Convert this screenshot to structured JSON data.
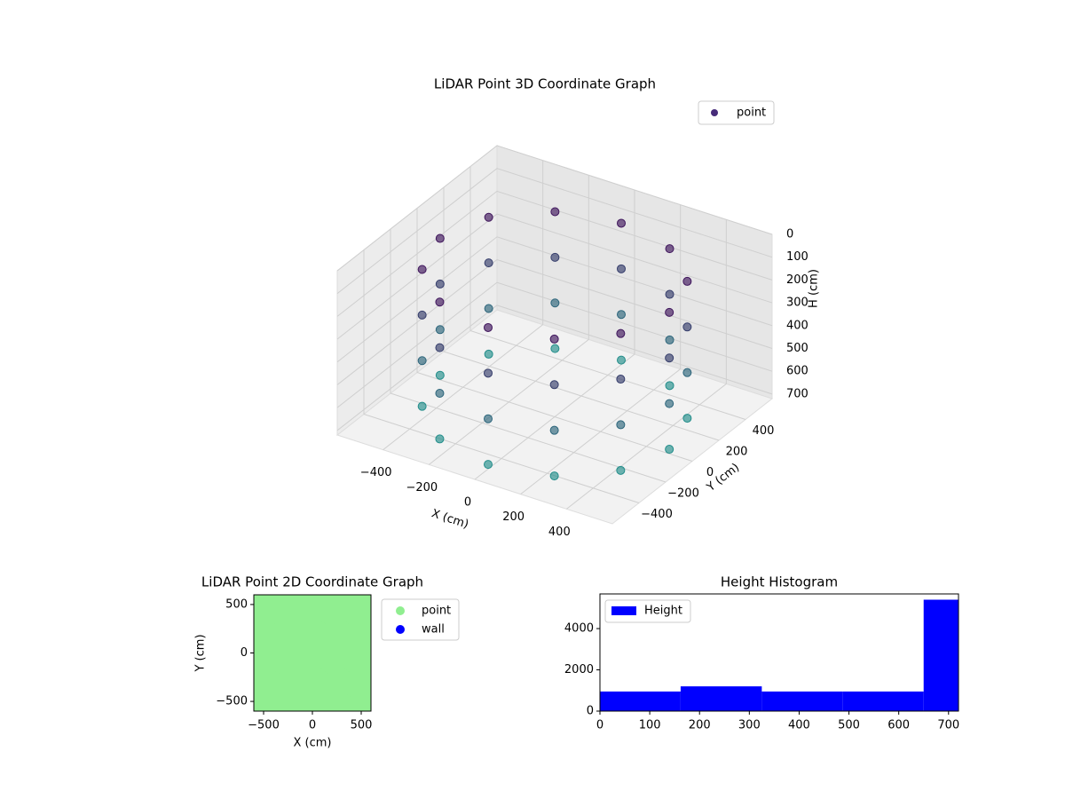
{
  "chart_data": [
    {
      "type": "scatter3d",
      "title": "LiDAR Point 3D Coordinate Graph",
      "xlabel": "X (cm)",
      "ylabel": "Y (cm)",
      "zlabel": "H (cm)",
      "series": [
        {
          "name": "point",
          "color": "#472c7a",
          "x": [
            500,
            433,
            250,
            0,
            -250,
            -433,
            -500,
            -433,
            -250,
            0,
            250,
            433,
            500,
            433,
            250,
            0,
            -250,
            -433,
            -500,
            -433,
            -250,
            0,
            250,
            433,
            500,
            433,
            250,
            0,
            -250,
            -433,
            -500,
            -433,
            -250,
            0,
            250,
            433,
            500,
            433,
            250,
            0,
            -250,
            -433,
            -500,
            -433,
            -250,
            0,
            250,
            433
          ],
          "y": [
            0,
            250,
            433,
            500,
            433,
            250,
            0,
            -250,
            -433,
            -500,
            -433,
            -250,
            0,
            250,
            433,
            500,
            433,
            250,
            0,
            -250,
            -433,
            -500,
            -433,
            -250,
            0,
            250,
            433,
            500,
            433,
            250,
            0,
            -250,
            -433,
            -500,
            -433,
            -250,
            0,
            250,
            433,
            500,
            433,
            250,
            0,
            -250,
            -433,
            -500,
            -433,
            -250
          ],
          "h": [
            100,
            100,
            100,
            100,
            100,
            100,
            100,
            100,
            100,
            100,
            100,
            100,
            300,
            300,
            300,
            300,
            300,
            300,
            300,
            300,
            300,
            300,
            300,
            300,
            500,
            500,
            500,
            500,
            500,
            500,
            500,
            500,
            500,
            500,
            500,
            500,
            700,
            700,
            700,
            700,
            700,
            700,
            700,
            700,
            700,
            700,
            700,
            700
          ]
        }
      ],
      "cmap": [
        "#440154",
        "#21918c"
      ],
      "xlim": [
        -600,
        600
      ],
      "ylim": [
        -600,
        600
      ],
      "zlim": [
        0,
        720
      ],
      "z_inverted": true,
      "xticks": [
        {
          "value": -400,
          "label": "−400"
        },
        {
          "value": -200,
          "label": "−200"
        },
        0,
        200,
        400
      ],
      "yticks": [
        {
          "value": -400,
          "label": "−400"
        },
        {
          "value": -200,
          "label": "−200"
        },
        0,
        200,
        400
      ],
      "zticks": [
        0,
        100,
        200,
        300,
        400,
        500,
        600,
        700
      ],
      "legend": "upper right"
    },
    {
      "type": "scatter",
      "title": "LiDAR Point 2D Coordinate Graph",
      "xlabel": "X (cm)",
      "ylabel": "Y (cm)",
      "series": [
        {
          "name": "point",
          "color": "#90ee90",
          "x": [
            -500,
            -250,
            0,
            250,
            500,
            -500,
            -250,
            0,
            250,
            500,
            -500,
            -250,
            0,
            250,
            500,
            -500,
            -250,
            0,
            250,
            500,
            -500,
            -250,
            0,
            250,
            500
          ],
          "y": [
            -500,
            -500,
            -500,
            -500,
            -500,
            -250,
            -250,
            -250,
            -250,
            -250,
            0,
            0,
            0,
            0,
            0,
            250,
            250,
            250,
            250,
            250,
            500,
            500,
            500,
            500,
            500
          ]
        },
        {
          "name": "wall",
          "color": "#0000ff",
          "x": [],
          "y": []
        }
      ],
      "xlim": [
        -600,
        600
      ],
      "ylim": [
        -600,
        600
      ],
      "xticks": [
        {
          "value": -500,
          "label": "−500"
        },
        0,
        500
      ],
      "yticks": [
        {
          "value": -500,
          "label": "−500"
        },
        0,
        500
      ],
      "legend": "outside right"
    },
    {
      "type": "histogram",
      "title": "Height Histogram",
      "series": [
        {
          "name": "Height",
          "color": "#0000ff",
          "bins": [
            0,
            162,
            325,
            487,
            650,
            720
          ],
          "values": [
            950,
            1200,
            950,
            950,
            5400
          ]
        }
      ],
      "xlim": [
        0,
        720
      ],
      "ylim": [
        0,
        5680
      ],
      "xticks": [
        0,
        100,
        200,
        300,
        400,
        500,
        600,
        700
      ],
      "yticks": [
        0,
        2000,
        4000
      ],
      "legend": "upper left"
    }
  ]
}
